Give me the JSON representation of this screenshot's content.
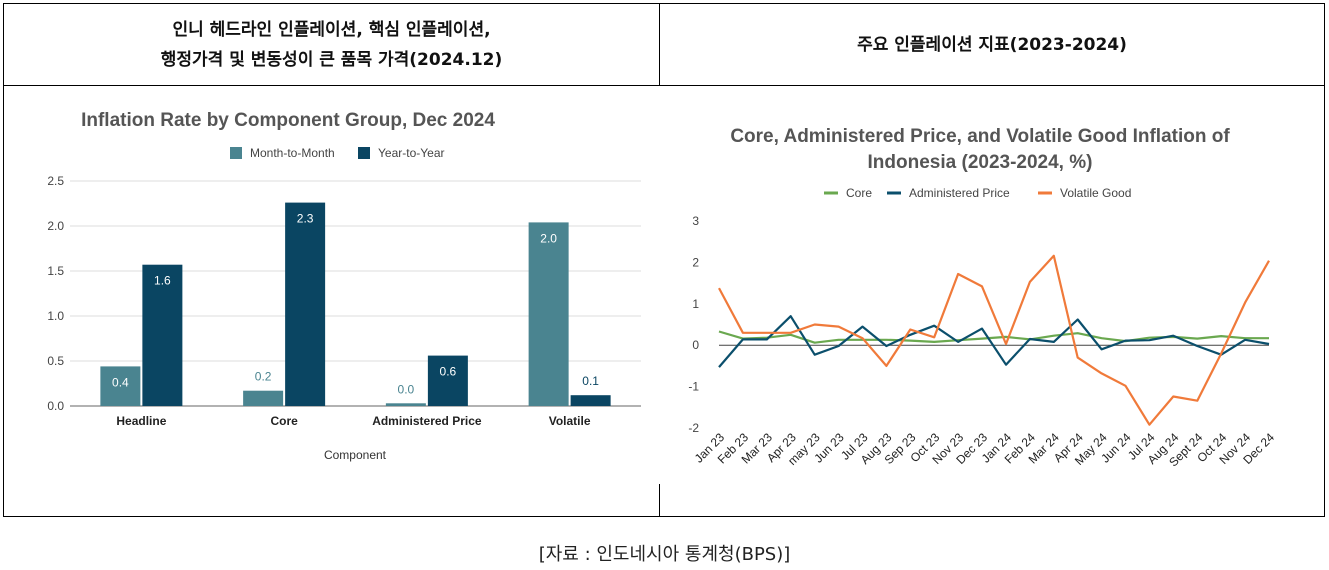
{
  "header": {
    "left_line1": "인니 헤드라인 인플레이션, 핵심 인플레이션,",
    "left_line2": "행정가격 및 변동성이 큰 품목 가격(2024.12)",
    "right": "주요 인플레이션 지표(2023-2024)"
  },
  "source": "[자료 : 인도네시아 통계청(BPS)]",
  "chart_data": [
    {
      "type": "bar",
      "title": "Inflation Rate by Component Group, Dec 2024",
      "xlabel": "Component",
      "ylabel": "",
      "categories": [
        "Headline",
        "Core",
        "Administered Price",
        "Volatile"
      ],
      "series": [
        {
          "name": "Month-to-Month",
          "values": [
            0.44,
            0.17,
            0.03,
            2.04
          ],
          "labels": [
            "0.4",
            "0.2",
            "0.0",
            "2.0"
          ],
          "color": "#4a8490"
        },
        {
          "name": "Year-to-Year",
          "values": [
            1.57,
            2.26,
            0.56,
            0.12
          ],
          "labels": [
            "1.6",
            "2.3",
            "0.6",
            "0.1"
          ],
          "color": "#0a4562"
        }
      ],
      "ylim": [
        0,
        2.5
      ],
      "yticks": [
        "0.0",
        "0.5",
        "1.0",
        "1.5",
        "2.0",
        "2.5"
      ],
      "legend": "top",
      "grid": true
    },
    {
      "type": "line",
      "title": "Core, Administered Price, and Volatile Good Inflation of Indonesia (2023-2024, %)",
      "title_lines": [
        "Core, Administered Price, and Volatile Good Inflation of",
        "Indonesia (2023-2024, %)"
      ],
      "x": [
        "Jan 23",
        "Feb 23",
        "Mar 23",
        "Apr 23",
        "may 23",
        "Jun 23",
        "Jul 23",
        "Aug 23",
        "Sep 23",
        "Oct 23",
        "Nov 23",
        "Dec 23",
        "Jan 24",
        "Feb 24",
        "Mar 24",
        "Apr 24",
        "May 24",
        "Jun 24",
        "Jul 24",
        "Aug 24",
        "Sept 24",
        "Oct 24",
        "Nov 24",
        "Dec 24"
      ],
      "series": [
        {
          "name": "Core",
          "color": "#6aa84f",
          "values": [
            0.33,
            0.16,
            0.18,
            0.25,
            0.06,
            0.13,
            0.13,
            0.13,
            0.11,
            0.08,
            0.12,
            0.16,
            0.2,
            0.14,
            0.23,
            0.29,
            0.17,
            0.1,
            0.18,
            0.2,
            0.16,
            0.22,
            0.17,
            0.17
          ]
        },
        {
          "name": "Administered Price",
          "color": "#0b4f6c",
          "values": [
            -0.53,
            0.14,
            0.14,
            0.7,
            -0.23,
            -0.02,
            0.45,
            -0.02,
            0.25,
            0.47,
            0.08,
            0.4,
            -0.47,
            0.15,
            0.08,
            0.62,
            -0.1,
            0.11,
            0.12,
            0.23,
            -0.02,
            -0.23,
            0.13,
            0.03
          ]
        },
        {
          "name": "Volatile Good",
          "color": "#f07a3a",
          "values": [
            1.38,
            0.3,
            0.3,
            0.3,
            0.5,
            0.45,
            0.17,
            -0.5,
            0.38,
            0.19,
            1.72,
            1.42,
            0.03,
            1.53,
            2.16,
            -0.3,
            -0.68,
            -0.98,
            -1.92,
            -1.24,
            -1.34,
            -0.2,
            1.03,
            2.04
          ]
        }
      ],
      "ylim": [
        -2,
        3
      ],
      "yticks": [
        "-2",
        "-1",
        "0",
        "1",
        "2",
        "3"
      ],
      "legend": "top",
      "grid": false
    }
  ]
}
